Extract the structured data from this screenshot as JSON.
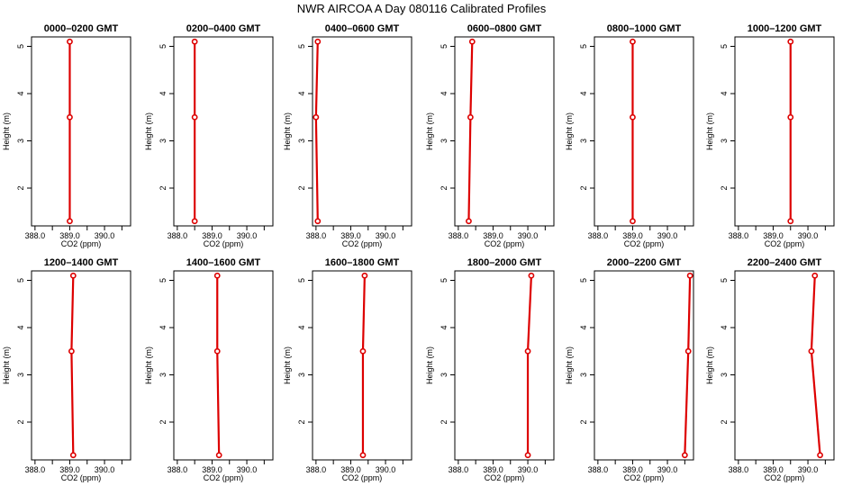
{
  "chart_data": {
    "type": "line",
    "title": "NWR AIRCOA A  Day 080116  Calibrated Profiles",
    "xlabel": "CO2 (ppm)",
    "ylabel": "Height (m)",
    "xlim": [
      387.9,
      390.75
    ],
    "ylim": [
      1.2,
      5.2
    ],
    "xticks": [
      388.0,
      388.5,
      389.0,
      389.5,
      390.0,
      390.5
    ],
    "xtick_labels": [
      "388.0",
      "",
      "389.0",
      "",
      "390.0",
      ""
    ],
    "yticks": [
      2,
      3,
      4,
      5
    ],
    "ytick_labels": [
      "2",
      "3",
      "4",
      "5"
    ],
    "grid": false,
    "layout": "2 rows x 6 columns",
    "panels": [
      {
        "title": "0000–0200 GMT",
        "points": [
          {
            "x": 389.0,
            "y": 1.3
          },
          {
            "x": 389.0,
            "y": 3.5
          },
          {
            "x": 389.0,
            "y": 5.1
          }
        ]
      },
      {
        "title": "0200–0400 GMT",
        "points": [
          {
            "x": 388.5,
            "y": 1.3
          },
          {
            "x": 388.5,
            "y": 3.5
          },
          {
            "x": 388.5,
            "y": 5.1
          }
        ]
      },
      {
        "title": "0400–0600 GMT",
        "points": [
          {
            "x": 388.05,
            "y": 1.3
          },
          {
            "x": 388.0,
            "y": 3.5
          },
          {
            "x": 388.05,
            "y": 5.1
          }
        ]
      },
      {
        "title": "0600–0800 GMT",
        "points": [
          {
            "x": 388.3,
            "y": 1.3
          },
          {
            "x": 388.35,
            "y": 3.5
          },
          {
            "x": 388.4,
            "y": 5.1
          }
        ]
      },
      {
        "title": "0800–1000 GMT",
        "points": [
          {
            "x": 389.0,
            "y": 1.3
          },
          {
            "x": 389.0,
            "y": 3.5
          },
          {
            "x": 389.0,
            "y": 5.1
          }
        ]
      },
      {
        "title": "1000–1200 GMT",
        "points": [
          {
            "x": 389.5,
            "y": 1.3
          },
          {
            "x": 389.5,
            "y": 3.5
          },
          {
            "x": 389.5,
            "y": 5.1
          }
        ]
      },
      {
        "title": "1200–1400 GMT",
        "points": [
          {
            "x": 389.1,
            "y": 1.3
          },
          {
            "x": 389.05,
            "y": 3.5
          },
          {
            "x": 389.1,
            "y": 5.1
          }
        ]
      },
      {
        "title": "1400–1600 GMT",
        "points": [
          {
            "x": 389.2,
            "y": 1.3
          },
          {
            "x": 389.15,
            "y": 3.5
          },
          {
            "x": 389.15,
            "y": 5.1
          }
        ]
      },
      {
        "title": "1600–1800 GMT",
        "points": [
          {
            "x": 389.35,
            "y": 1.3
          },
          {
            "x": 389.35,
            "y": 3.5
          },
          {
            "x": 389.4,
            "y": 5.1
          }
        ]
      },
      {
        "title": "1800–2000 GMT",
        "points": [
          {
            "x": 390.0,
            "y": 1.3
          },
          {
            "x": 390.0,
            "y": 3.5
          },
          {
            "x": 390.1,
            "y": 5.1
          }
        ]
      },
      {
        "title": "2000–2200 GMT",
        "points": [
          {
            "x": 390.5,
            "y": 1.3
          },
          {
            "x": 390.6,
            "y": 3.5
          },
          {
            "x": 390.65,
            "y": 5.1
          }
        ]
      },
      {
        "title": "2200–2400 GMT",
        "points": [
          {
            "x": 390.35,
            "y": 1.3
          },
          {
            "x": 390.1,
            "y": 3.5
          },
          {
            "x": 390.2,
            "y": 5.1
          }
        ]
      }
    ]
  },
  "colors": {
    "profile_line": "#dd0000",
    "marker_fill": "#ffffff",
    "axes": "#000000"
  }
}
